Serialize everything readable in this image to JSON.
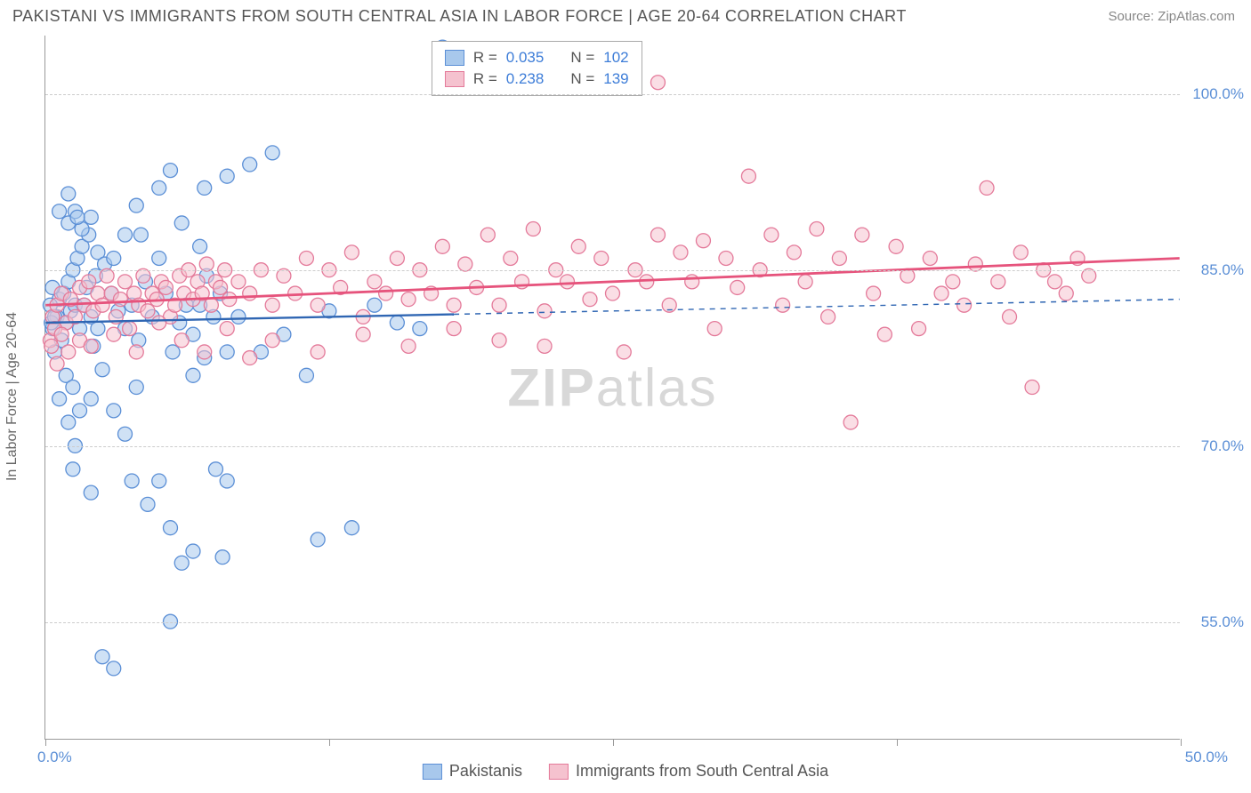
{
  "title": "PAKISTANI VS IMMIGRANTS FROM SOUTH CENTRAL ASIA IN LABOR FORCE | AGE 20-64 CORRELATION CHART",
  "source": "Source: ZipAtlas.com",
  "watermark_bold": "ZIP",
  "watermark_light": "atlas",
  "y_axis_label": "In Labor Force | Age 20-64",
  "chart": {
    "type": "scatter",
    "xlim": [
      0,
      50
    ],
    "ylim": [
      45,
      105
    ],
    "x_ticks": [
      0,
      12.5,
      25,
      37.5,
      50
    ],
    "x_tick_labels_visible": {
      "0": "0.0%",
      "50": "50.0%"
    },
    "y_ticks": [
      55,
      70,
      85,
      100
    ],
    "y_tick_labels": [
      "55.0%",
      "70.0%",
      "85.0%",
      "100.0%"
    ],
    "grid_color": "#cccccc",
    "background_color": "#ffffff",
    "marker_radius": 8,
    "marker_opacity": 0.55,
    "series": [
      {
        "name": "Pakistanis",
        "fill": "#a8c8ec",
        "stroke": "#5b8fd6",
        "r_value": "0.035",
        "n_value": "102",
        "regression": {
          "x1": 0,
          "y1": 80.5,
          "x2": 50,
          "y2": 82.5,
          "solid_until_x": 18,
          "color": "#2f66b3",
          "width": 2.4,
          "dash": "6,6"
        },
        "points": [
          [
            0.3,
            80
          ],
          [
            0.5,
            81
          ],
          [
            0.6,
            82.5
          ],
          [
            0.7,
            79
          ],
          [
            0.8,
            83
          ],
          [
            0.9,
            80.5
          ],
          [
            1.0,
            84
          ],
          [
            1.1,
            81.5
          ],
          [
            1.2,
            85
          ],
          [
            1.3,
            82
          ],
          [
            1.4,
            86
          ],
          [
            1.5,
            80
          ],
          [
            1.6,
            87
          ],
          [
            1.7,
            82
          ],
          [
            1.8,
            83.5
          ],
          [
            1.9,
            88
          ],
          [
            2.0,
            81
          ],
          [
            2.1,
            78.5
          ],
          [
            2.2,
            84.5
          ],
          [
            2.3,
            80
          ],
          [
            0.4,
            78
          ],
          [
            0.6,
            74
          ],
          [
            0.9,
            76
          ],
          [
            1.2,
            75
          ],
          [
            1.5,
            73
          ],
          [
            1.0,
            89
          ],
          [
            1.3,
            90
          ],
          [
            1.6,
            88.5
          ],
          [
            2.0,
            89.5
          ],
          [
            2.3,
            86.5
          ],
          [
            2.6,
            85.5
          ],
          [
            2.9,
            83
          ],
          [
            3.2,
            81.5
          ],
          [
            3.5,
            80
          ],
          [
            3.8,
            82
          ],
          [
            4.1,
            79
          ],
          [
            4.4,
            84
          ],
          [
            4.7,
            81
          ],
          [
            5.0,
            86
          ],
          [
            5.3,
            83
          ],
          [
            5.6,
            78
          ],
          [
            5.9,
            80.5
          ],
          [
            6.2,
            82
          ],
          [
            6.5,
            79.5
          ],
          [
            6.8,
            87
          ],
          [
            7.1,
            84.5
          ],
          [
            7.4,
            81
          ],
          [
            7.7,
            83
          ],
          [
            8.0,
            78
          ],
          [
            1.0,
            72
          ],
          [
            1.3,
            70
          ],
          [
            2.0,
            74
          ],
          [
            2.5,
            76.5
          ],
          [
            3.0,
            73
          ],
          [
            3.5,
            71
          ],
          [
            4.0,
            75
          ],
          [
            4.5,
            65
          ],
          [
            5.0,
            67
          ],
          [
            5.5,
            63
          ],
          [
            6.0,
            60
          ],
          [
            6.5,
            76
          ],
          [
            7.0,
            77.5
          ],
          [
            7.5,
            68
          ],
          [
            8.0,
            67
          ],
          [
            2.5,
            52
          ],
          [
            3.0,
            51
          ],
          [
            5.5,
            55
          ],
          [
            6.5,
            61
          ],
          [
            7.8,
            60.5
          ],
          [
            0.6,
            90
          ],
          [
            1.0,
            91.5
          ],
          [
            1.4,
            89.5
          ],
          [
            3.5,
            88
          ],
          [
            4.0,
            90.5
          ],
          [
            5.0,
            92
          ],
          [
            5.5,
            93.5
          ],
          [
            6.0,
            89
          ],
          [
            7.0,
            92
          ],
          [
            8.0,
            93
          ],
          [
            9.0,
            94
          ],
          [
            10.0,
            95
          ],
          [
            12.0,
            62
          ],
          [
            3.0,
            86
          ],
          [
            4.2,
            88
          ],
          [
            6.8,
            82
          ],
          [
            8.5,
            81
          ],
          [
            9.5,
            78
          ],
          [
            10.5,
            79.5
          ],
          [
            11.5,
            76
          ],
          [
            12.5,
            81.5
          ],
          [
            13.5,
            63
          ],
          [
            14.5,
            82
          ],
          [
            15.5,
            80.5
          ],
          [
            16.5,
            80
          ],
          [
            17.5,
            104
          ],
          [
            2.0,
            66
          ],
          [
            1.2,
            68
          ],
          [
            3.8,
            67
          ],
          [
            0.2,
            82
          ],
          [
            0.25,
            80.5
          ],
          [
            0.3,
            83.5
          ],
          [
            0.4,
            81
          ]
        ]
      },
      {
        "name": "Immigrants from South Central Asia",
        "fill": "#f5c2cf",
        "stroke": "#e47a9a",
        "r_value": "0.238",
        "n_value": "139",
        "regression": {
          "x1": 0,
          "y1": 82,
          "x2": 50,
          "y2": 86,
          "solid_until_x": 50,
          "color": "#e6537c",
          "width": 2.8,
          "dash": ""
        },
        "points": [
          [
            0.3,
            81
          ],
          [
            0.5,
            82
          ],
          [
            0.7,
            83
          ],
          [
            0.9,
            80.5
          ],
          [
            1.1,
            82.5
          ],
          [
            1.3,
            81
          ],
          [
            1.5,
            83.5
          ],
          [
            1.7,
            82
          ],
          [
            1.9,
            84
          ],
          [
            2.1,
            81.5
          ],
          [
            2.3,
            83
          ],
          [
            2.5,
            82
          ],
          [
            2.7,
            84.5
          ],
          [
            2.9,
            83
          ],
          [
            3.1,
            81
          ],
          [
            3.3,
            82.5
          ],
          [
            3.5,
            84
          ],
          [
            3.7,
            80
          ],
          [
            3.9,
            83
          ],
          [
            4.1,
            82
          ],
          [
            4.3,
            84.5
          ],
          [
            4.5,
            81.5
          ],
          [
            4.7,
            83
          ],
          [
            4.9,
            82.5
          ],
          [
            5.1,
            84
          ],
          [
            5.3,
            83.5
          ],
          [
            5.5,
            81
          ],
          [
            5.7,
            82
          ],
          [
            5.9,
            84.5
          ],
          [
            6.1,
            83
          ],
          [
            6.3,
            85
          ],
          [
            6.5,
            82.5
          ],
          [
            6.7,
            84
          ],
          [
            6.9,
            83
          ],
          [
            7.1,
            85.5
          ],
          [
            7.3,
            82
          ],
          [
            7.5,
            84
          ],
          [
            7.7,
            83.5
          ],
          [
            7.9,
            85
          ],
          [
            8.1,
            82.5
          ],
          [
            8.5,
            84
          ],
          [
            9.0,
            83
          ],
          [
            9.5,
            85
          ],
          [
            10.0,
            82
          ],
          [
            10.5,
            84.5
          ],
          [
            11.0,
            83
          ],
          [
            11.5,
            86
          ],
          [
            12.0,
            82
          ],
          [
            12.5,
            85
          ],
          [
            13.0,
            83.5
          ],
          [
            13.5,
            86.5
          ],
          [
            14.0,
            81
          ],
          [
            14.5,
            84
          ],
          [
            15.0,
            83
          ],
          [
            15.5,
            86
          ],
          [
            16.0,
            82.5
          ],
          [
            16.5,
            85
          ],
          [
            17.0,
            83
          ],
          [
            17.5,
            87
          ],
          [
            18.0,
            82
          ],
          [
            18.5,
            85.5
          ],
          [
            19.0,
            83.5
          ],
          [
            19.5,
            88
          ],
          [
            20.0,
            82
          ],
          [
            20.5,
            86
          ],
          [
            21.0,
            84
          ],
          [
            21.5,
            88.5
          ],
          [
            22.0,
            81.5
          ],
          [
            22.5,
            85
          ],
          [
            23.0,
            84
          ],
          [
            23.5,
            87
          ],
          [
            24.0,
            82.5
          ],
          [
            24.5,
            86
          ],
          [
            25.0,
            83
          ],
          [
            25.5,
            78
          ],
          [
            26.0,
            85
          ],
          [
            26.5,
            84
          ],
          [
            27.0,
            88
          ],
          [
            27.5,
            82
          ],
          [
            28.0,
            86.5
          ],
          [
            28.5,
            84
          ],
          [
            29.0,
            87.5
          ],
          [
            29.5,
            80
          ],
          [
            30.0,
            86
          ],
          [
            30.5,
            83.5
          ],
          [
            31.0,
            93
          ],
          [
            31.5,
            85
          ],
          [
            32.0,
            88
          ],
          [
            32.5,
            82
          ],
          [
            33.0,
            86.5
          ],
          [
            33.5,
            84
          ],
          [
            34.0,
            88.5
          ],
          [
            34.5,
            81
          ],
          [
            35.0,
            86
          ],
          [
            35.5,
            72
          ],
          [
            36.0,
            88
          ],
          [
            36.5,
            83
          ],
          [
            37.0,
            79.5
          ],
          [
            37.5,
            87
          ],
          [
            38.0,
            84.5
          ],
          [
            38.5,
            80
          ],
          [
            39.0,
            86
          ],
          [
            39.5,
            83
          ],
          [
            40.0,
            84
          ],
          [
            40.5,
            82
          ],
          [
            41.0,
            85.5
          ],
          [
            41.5,
            92
          ],
          [
            42.0,
            84
          ],
          [
            42.5,
            81
          ],
          [
            43.0,
            86.5
          ],
          [
            43.5,
            75
          ],
          [
            44.0,
            85
          ],
          [
            44.5,
            84
          ],
          [
            45.0,
            83
          ],
          [
            45.5,
            86
          ],
          [
            46.0,
            84.5
          ],
          [
            27.0,
            101
          ],
          [
            0.2,
            79
          ],
          [
            0.25,
            78.5
          ],
          [
            0.4,
            80
          ],
          [
            0.5,
            77
          ],
          [
            0.7,
            79.5
          ],
          [
            1.0,
            78
          ],
          [
            1.5,
            79
          ],
          [
            2.0,
            78.5
          ],
          [
            3.0,
            79.5
          ],
          [
            4.0,
            78
          ],
          [
            5.0,
            80.5
          ],
          [
            6.0,
            79
          ],
          [
            7.0,
            78
          ],
          [
            8.0,
            80
          ],
          [
            9.0,
            77.5
          ],
          [
            10.0,
            79
          ],
          [
            12.0,
            78
          ],
          [
            14.0,
            79.5
          ],
          [
            16.0,
            78.5
          ],
          [
            18.0,
            80
          ],
          [
            20.0,
            79
          ],
          [
            22.0,
            78.5
          ]
        ]
      }
    ]
  },
  "legend_top": {
    "r_label": "R =",
    "n_label": "N ="
  },
  "legend_bottom": {
    "items": [
      "Pakistanis",
      "Immigrants from South Central Asia"
    ]
  }
}
